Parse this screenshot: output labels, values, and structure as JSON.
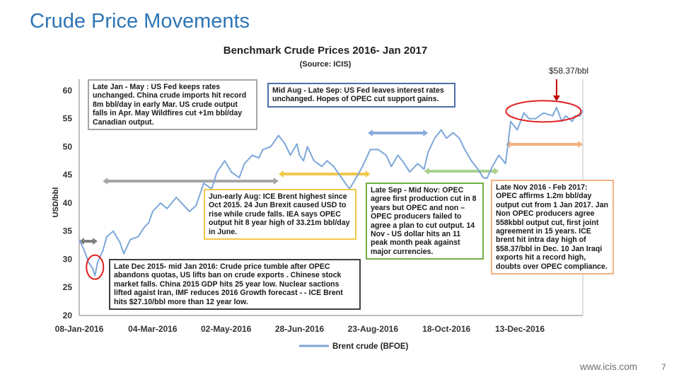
{
  "slide": {
    "title": "Crude Price Movements",
    "footer_url": "www.icis.com",
    "page_number": "7"
  },
  "chart_data": {
    "type": "line",
    "title": "Benchmark Crude Prices 2016- Jan 2017",
    "subtitle": "(Source: ICIS)",
    "ylabel": "USD/bbl",
    "xlabel": "",
    "x_ticks": [
      "08-Jan-2016",
      "04-Mar-2016",
      "02-May-2016",
      "28-Jun-2016",
      "23-Aug-2016",
      "18-Oct-2016",
      "13-Dec-2016"
    ],
    "y_ticks": [
      20,
      25,
      30,
      35,
      40,
      45,
      50,
      55,
      60
    ],
    "ylim": [
      20,
      62
    ],
    "xlim": [
      "2016-01-08",
      "2017-01-26"
    ],
    "legend": "bottom",
    "grid": false,
    "series": [
      {
        "name": "Brent crude (BFOE)",
        "color": "#7da7d9",
        "points": [
          [
            "2016-01-08",
            33.5
          ],
          [
            "2016-01-12",
            31.5
          ],
          [
            "2016-01-15",
            29.5
          ],
          [
            "2016-01-18",
            28.5
          ],
          [
            "2016-01-20",
            27.1
          ],
          [
            "2016-01-22",
            29.5
          ],
          [
            "2016-01-26",
            31.5
          ],
          [
            "2016-01-29",
            34.0
          ],
          [
            "2016-02-03",
            35.0
          ],
          [
            "2016-02-08",
            33.0
          ],
          [
            "2016-02-11",
            31.0
          ],
          [
            "2016-02-16",
            33.5
          ],
          [
            "2016-02-22",
            34.0
          ],
          [
            "2016-02-26",
            35.5
          ],
          [
            "2016-03-01",
            36.5
          ],
          [
            "2016-03-04",
            38.5
          ],
          [
            "2016-03-10",
            40.0
          ],
          [
            "2016-03-15",
            39.0
          ],
          [
            "2016-03-22",
            41.0
          ],
          [
            "2016-03-28",
            39.5
          ],
          [
            "2016-04-01",
            38.5
          ],
          [
            "2016-04-06",
            39.5
          ],
          [
            "2016-04-12",
            43.5
          ],
          [
            "2016-04-18",
            42.5
          ],
          [
            "2016-04-22",
            45.5
          ],
          [
            "2016-04-28",
            47.5
          ],
          [
            "2016-05-03",
            45.5
          ],
          [
            "2016-05-09",
            44.5
          ],
          [
            "2016-05-13",
            47.0
          ],
          [
            "2016-05-19",
            48.5
          ],
          [
            "2016-05-24",
            48.0
          ],
          [
            "2016-05-27",
            49.5
          ],
          [
            "2016-06-02",
            50.0
          ],
          [
            "2016-06-08",
            52.0
          ],
          [
            "2016-06-13",
            50.5
          ],
          [
            "2016-06-17",
            48.5
          ],
          [
            "2016-06-22",
            50.5
          ],
          [
            "2016-06-24",
            48.5
          ],
          [
            "2016-06-27",
            47.5
          ],
          [
            "2016-06-30",
            50.0
          ],
          [
            "2016-07-05",
            47.5
          ],
          [
            "2016-07-11",
            46.5
          ],
          [
            "2016-07-15",
            47.5
          ],
          [
            "2016-07-20",
            46.5
          ],
          [
            "2016-07-26",
            44.5
          ],
          [
            "2016-08-01",
            42.5
          ],
          [
            "2016-08-05",
            44.0
          ],
          [
            "2016-08-11",
            46.5
          ],
          [
            "2016-08-17",
            49.5
          ],
          [
            "2016-08-23",
            49.5
          ],
          [
            "2016-08-29",
            48.5
          ],
          [
            "2016-09-02",
            46.5
          ],
          [
            "2016-09-07",
            48.5
          ],
          [
            "2016-09-12",
            47.0
          ],
          [
            "2016-09-16",
            45.5
          ],
          [
            "2016-09-22",
            47.0
          ],
          [
            "2016-09-27",
            46.0
          ],
          [
            "2016-09-30",
            49.0
          ],
          [
            "2016-10-05",
            51.5
          ],
          [
            "2016-10-10",
            53.0
          ],
          [
            "2016-10-14",
            51.5
          ],
          [
            "2016-10-19",
            52.5
          ],
          [
            "2016-10-24",
            51.5
          ],
          [
            "2016-10-28",
            49.5
          ],
          [
            "2016-11-02",
            47.5
          ],
          [
            "2016-11-07",
            46.0
          ],
          [
            "2016-11-11",
            44.5
          ],
          [
            "2016-11-14",
            44.4
          ],
          [
            "2016-11-18",
            46.5
          ],
          [
            "2016-11-23",
            48.5
          ],
          [
            "2016-11-28",
            47.0
          ],
          [
            "2016-11-30",
            50.5
          ],
          [
            "2016-12-02",
            54.5
          ],
          [
            "2016-12-07",
            53.0
          ],
          [
            "2016-12-12",
            56.0
          ],
          [
            "2016-12-16",
            55.0
          ],
          [
            "2016-12-21",
            55.0
          ],
          [
            "2016-12-27",
            56.0
          ],
          [
            "2017-01-03",
            55.5
          ],
          [
            "2017-01-06",
            57.0
          ],
          [
            "2017-01-10",
            54.5
          ],
          [
            "2017-01-13",
            55.5
          ],
          [
            "2017-01-18",
            54.5
          ],
          [
            "2017-01-20",
            55.5
          ],
          [
            "2017-01-24",
            55.5
          ],
          [
            "2017-01-26",
            56.5
          ]
        ]
      }
    ],
    "callout_price": "$58.37/bbl",
    "annotations": [
      {
        "id": "note1",
        "text": "Late Jan - May : US Fed keeps rates unchanged. China crude imports hit record 8m bbl/day in early Mar. US crude output falls in Apr. May Wildfires cut +1m bbl/day Canadian output.",
        "border": "#a6a6a6"
      },
      {
        "id": "note2",
        "text": "Mid Aug - Late Sep: US Fed leaves interest rates unchanged. Hopes of OPEC cut support gains.",
        "border": "#4f6fa8"
      },
      {
        "id": "note3",
        "text": "Jun-early Aug: ICE Brent highest since Oct 2015. 24 Jun Brexit caused USD to rise while crude falls. IEA says OPEC output hit 8 year high of 33.21m bbl/day in June.",
        "border": "#f2c84b"
      },
      {
        "id": "note4",
        "text": "Late Sep - Mid Nov: OPEC agree first production cut in 8 years but OPEC and non – OPEC producers failed to agree a plan to cut output. 14 Nov - US dollar hits an 11 peak month peak against major currencies.",
        "border": "#70ad47"
      },
      {
        "id": "note5",
        "text": "Late Nov 2016 - Feb 2017: OPEC affirms 1.2m bbl/day output cut from 1 Jan 2017. Jan Non OPEC producers agree 558kbbl output cut, first joint agreement in 15 years. ICE brent hit intra day high of $58.37/bbl in Dec. 10 Jan Iraqi exports hit a record high, doubts over OPEC compliance.",
        "border": "#f4b183"
      },
      {
        "id": "note6",
        "text": "Late Dec 2015- mid Jan 2016: Crude price tumble after OPEC abandons quotas, US lifts ban on crude exports . Chinese stock market falls. China 2015 GDP hits 25 year low. Nuclear sactions lifted agaist Iran, IMF reduces 2016 Growth forecast - - ICE Brent hits $27.10/bbl more than 12 year low.",
        "border": "#404040"
      }
    ],
    "period_arrows": [
      {
        "color": "#7f7f7f",
        "from": "2016-01-08",
        "to": "2016-01-22"
      },
      {
        "color": "#a6a6a6",
        "from": "2016-01-26",
        "to": "2016-06-08"
      },
      {
        "color": "#f2c84b",
        "from": "2016-06-08",
        "to": "2016-08-17"
      },
      {
        "color": "#8faadc",
        "from": "2016-08-15",
        "to": "2016-09-30"
      },
      {
        "color": "#a9d18e",
        "from": "2016-09-27",
        "to": "2016-11-23"
      },
      {
        "color": "#f4b183",
        "from": "2016-11-28",
        "to": "2017-01-26"
      }
    ],
    "highlight_colors": {
      "circle": "#e02020",
      "arrow": "#c00000"
    }
  }
}
